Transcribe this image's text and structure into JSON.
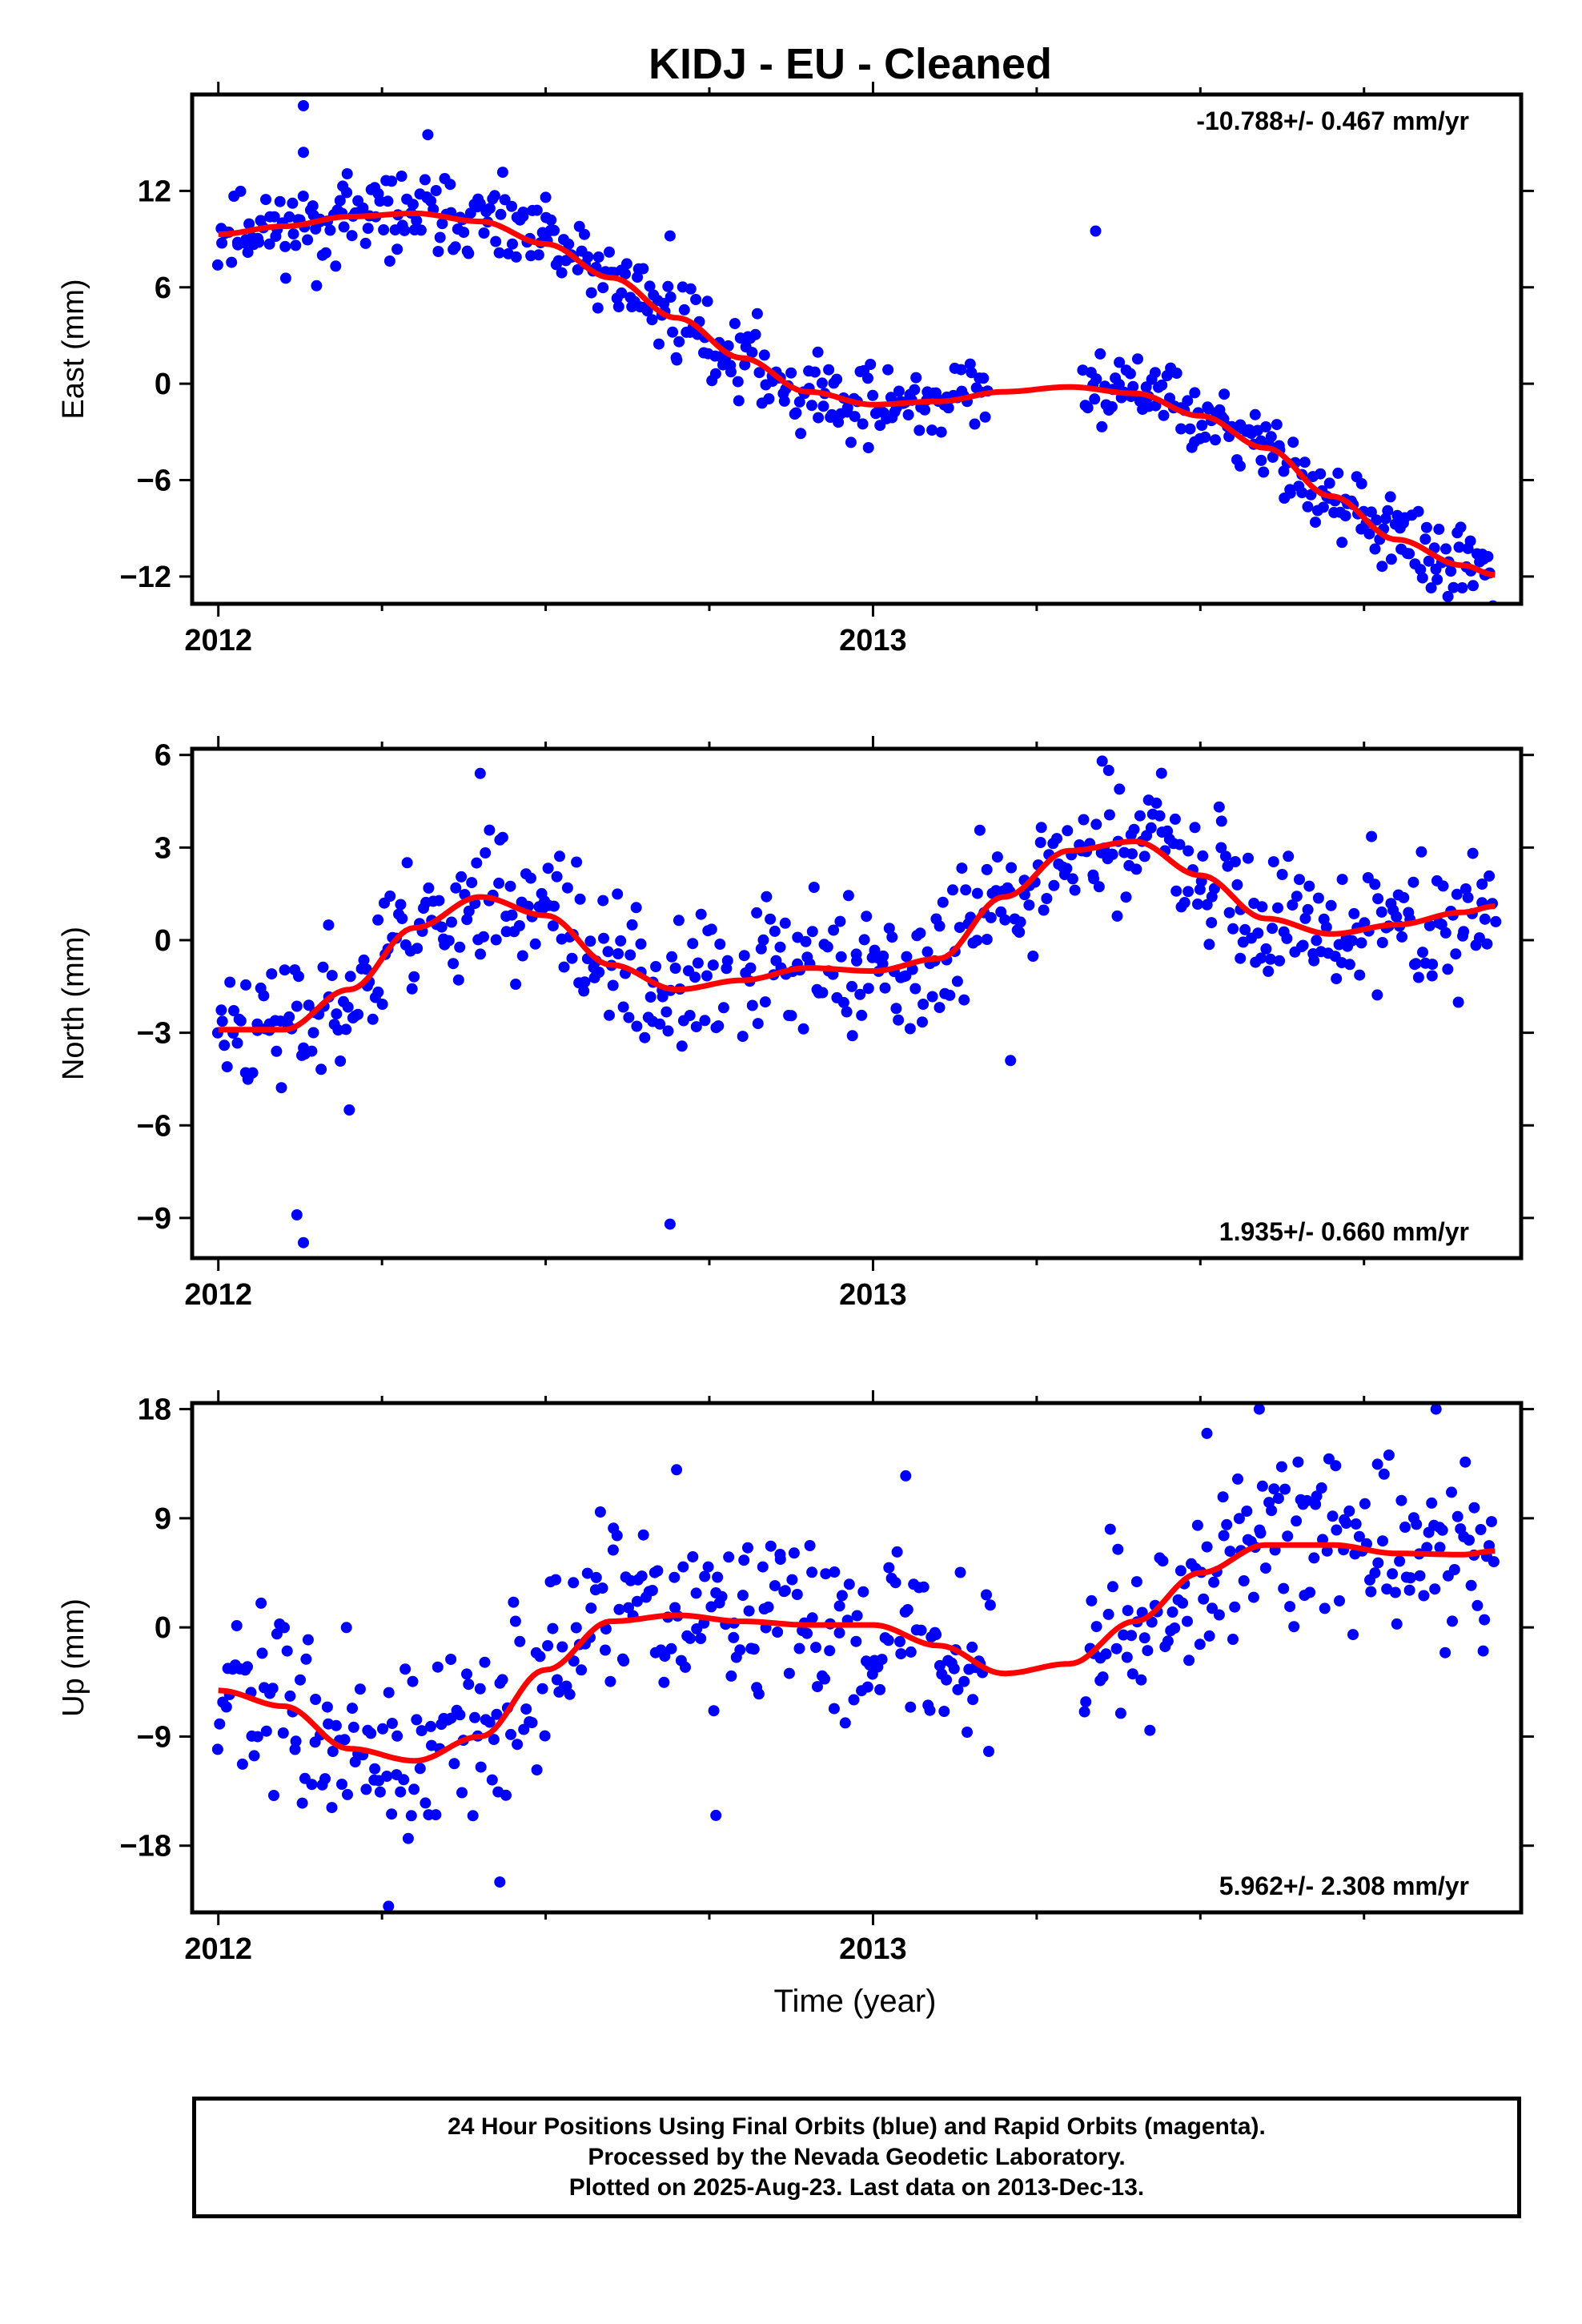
{
  "title": "KIDJ  - EU - Cleaned",
  "xlabel": "Time (year)",
  "footer": {
    "line1": "24 Hour Positions Using Final Orbits (blue) and Rapid Orbits (magenta).",
    "line2": "Processed by the Nevada Geodetic Laboratory.",
    "line3": "Plotted on 2025-Aug-23. Last data on 2013-Dec-13."
  },
  "colors": {
    "data": "#0000ff",
    "model": "#ff0000",
    "frame": "#000000"
  },
  "chart_data": [
    {
      "type": "scatter",
      "ylabel": "East (mm)",
      "rate_label": "-10.788+/- 0.467 mm/yr",
      "rate_position": "top-right",
      "xlim": [
        2011.96,
        2013.99
      ],
      "ylim": [
        -13.7,
        18.0
      ],
      "yticks": [
        -12,
        -6,
        0,
        6,
        12
      ],
      "ytick_labels": [
        "−12",
        "−6",
        "0",
        "6",
        "12"
      ],
      "xticks": [
        2012,
        2013
      ],
      "xtick_labels": [
        "2012",
        "2013"
      ],
      "model": {
        "x": [
          2012.0,
          2012.1,
          2012.2,
          2012.3,
          2012.4,
          2012.5,
          2012.6,
          2012.7,
          2012.8,
          2012.9,
          2013.0,
          2013.1,
          2013.2,
          2013.3,
          2013.4,
          2013.5,
          2013.6,
          2013.7,
          2013.8,
          2013.9,
          2013.95
        ],
        "y": [
          9.3,
          9.8,
          10.4,
          10.6,
          10.1,
          8.7,
          6.6,
          4.1,
          1.6,
          -0.5,
          -1.3,
          -1.1,
          -0.5,
          -0.2,
          -0.6,
          -2.0,
          -4.0,
          -7.0,
          -9.7,
          -11.3,
          -11.9
        ]
      },
      "scatter": {
        "n": 560,
        "spread": 1.2,
        "seed": 11,
        "gap": [
          2013.18,
          2013.32
        ],
        "outliers": [
          {
            "x": 2012.13,
            "y": 17.3
          },
          {
            "x": 2012.13,
            "y": 14.4
          },
          {
            "x": 2012.32,
            "y": 15.5
          },
          {
            "x": 2012.19,
            "y": 12.3
          },
          {
            "x": 2013.34,
            "y": 9.5
          },
          {
            "x": 2012.15,
            "y": 6.1
          },
          {
            "x": 2012.5,
            "y": 11.6
          },
          {
            "x": 2012.69,
            "y": 9.2
          }
        ]
      }
    },
    {
      "type": "scatter",
      "ylabel": "North (mm)",
      "rate_label": "1.935+/- 0.660 mm/yr",
      "rate_position": "bottom-right",
      "xlim": [
        2011.96,
        2013.99
      ],
      "ylim": [
        -10.3,
        6.2
      ],
      "yticks": [
        -9,
        -6,
        -3,
        0,
        3,
        6
      ],
      "ytick_labels": [
        "−9",
        "−6",
        "−3",
        "0",
        "3",
        "6"
      ],
      "xticks": [
        2012,
        2013
      ],
      "xtick_labels": [
        "2012",
        "2013"
      ],
      "model": {
        "x": [
          2012.0,
          2012.1,
          2012.2,
          2012.3,
          2012.4,
          2012.5,
          2012.6,
          2012.7,
          2012.8,
          2012.9,
          2013.0,
          2013.1,
          2013.2,
          2013.3,
          2013.4,
          2013.5,
          2013.6,
          2013.7,
          2013.8,
          2013.9,
          2013.95
        ],
        "y": [
          -2.9,
          -2.9,
          -1.6,
          0.4,
          1.4,
          0.8,
          -0.8,
          -1.6,
          -1.3,
          -0.9,
          -1.0,
          -0.6,
          1.4,
          2.9,
          3.2,
          2.1,
          0.7,
          0.2,
          0.5,
          0.9,
          1.1
        ]
      },
      "scatter": {
        "n": 540,
        "spread": 1.1,
        "seed": 23,
        "gap": [
          2012.78,
          2012.8
        ],
        "outliers": [
          {
            "x": 2012.12,
            "y": -8.9
          },
          {
            "x": 2012.13,
            "y": -9.8
          },
          {
            "x": 2012.69,
            "y": -9.2
          },
          {
            "x": 2012.4,
            "y": 5.4
          },
          {
            "x": 2013.35,
            "y": 5.8
          },
          {
            "x": 2013.36,
            "y": 5.5
          },
          {
            "x": 2012.2,
            "y": -5.5
          },
          {
            "x": 2013.21,
            "y": -3.9
          }
        ]
      }
    },
    {
      "type": "scatter",
      "ylabel": "Up (mm)",
      "rate_label": "5.962+/- 2.308 mm/yr",
      "rate_position": "bottom-right",
      "xlim": [
        2011.96,
        2013.99
      ],
      "ylim": [
        -23.5,
        18.5
      ],
      "yticks": [
        -18,
        -9,
        0,
        9,
        18
      ],
      "ytick_labels": [
        "−18",
        "−9",
        "0",
        "9",
        "18"
      ],
      "xticks": [
        2012,
        2013
      ],
      "xtick_labels": [
        "2012",
        "2013"
      ],
      "model": {
        "x": [
          2012.0,
          2012.1,
          2012.2,
          2012.3,
          2012.4,
          2012.5,
          2012.6,
          2012.7,
          2012.8,
          2012.9,
          2013.0,
          2013.1,
          2013.2,
          2013.3,
          2013.4,
          2013.5,
          2013.6,
          2013.7,
          2013.8,
          2013.9,
          2013.95
        ],
        "y": [
          -5.2,
          -6.5,
          -10.0,
          -11.0,
          -9.0,
          -3.5,
          0.5,
          1.0,
          0.5,
          0.2,
          0.2,
          -1.5,
          -3.8,
          -3.0,
          0.5,
          4.5,
          6.8,
          6.8,
          6.1,
          6.0,
          6.3
        ]
      },
      "scatter": {
        "n": 520,
        "spread": 3.6,
        "seed": 37,
        "gap": [
          2013.18,
          2013.32
        ],
        "outliers": [
          {
            "x": 2012.26,
            "y": -23.0
          },
          {
            "x": 2012.43,
            "y": -21.0
          },
          {
            "x": 2012.76,
            "y": -15.5
          },
          {
            "x": 2013.59,
            "y": 18.0
          },
          {
            "x": 2013.86,
            "y": 18.0
          },
          {
            "x": 2013.51,
            "y": 16.0
          },
          {
            "x": 2012.7,
            "y": 13.0
          },
          {
            "x": 2013.05,
            "y": 12.5
          }
        ]
      }
    }
  ]
}
